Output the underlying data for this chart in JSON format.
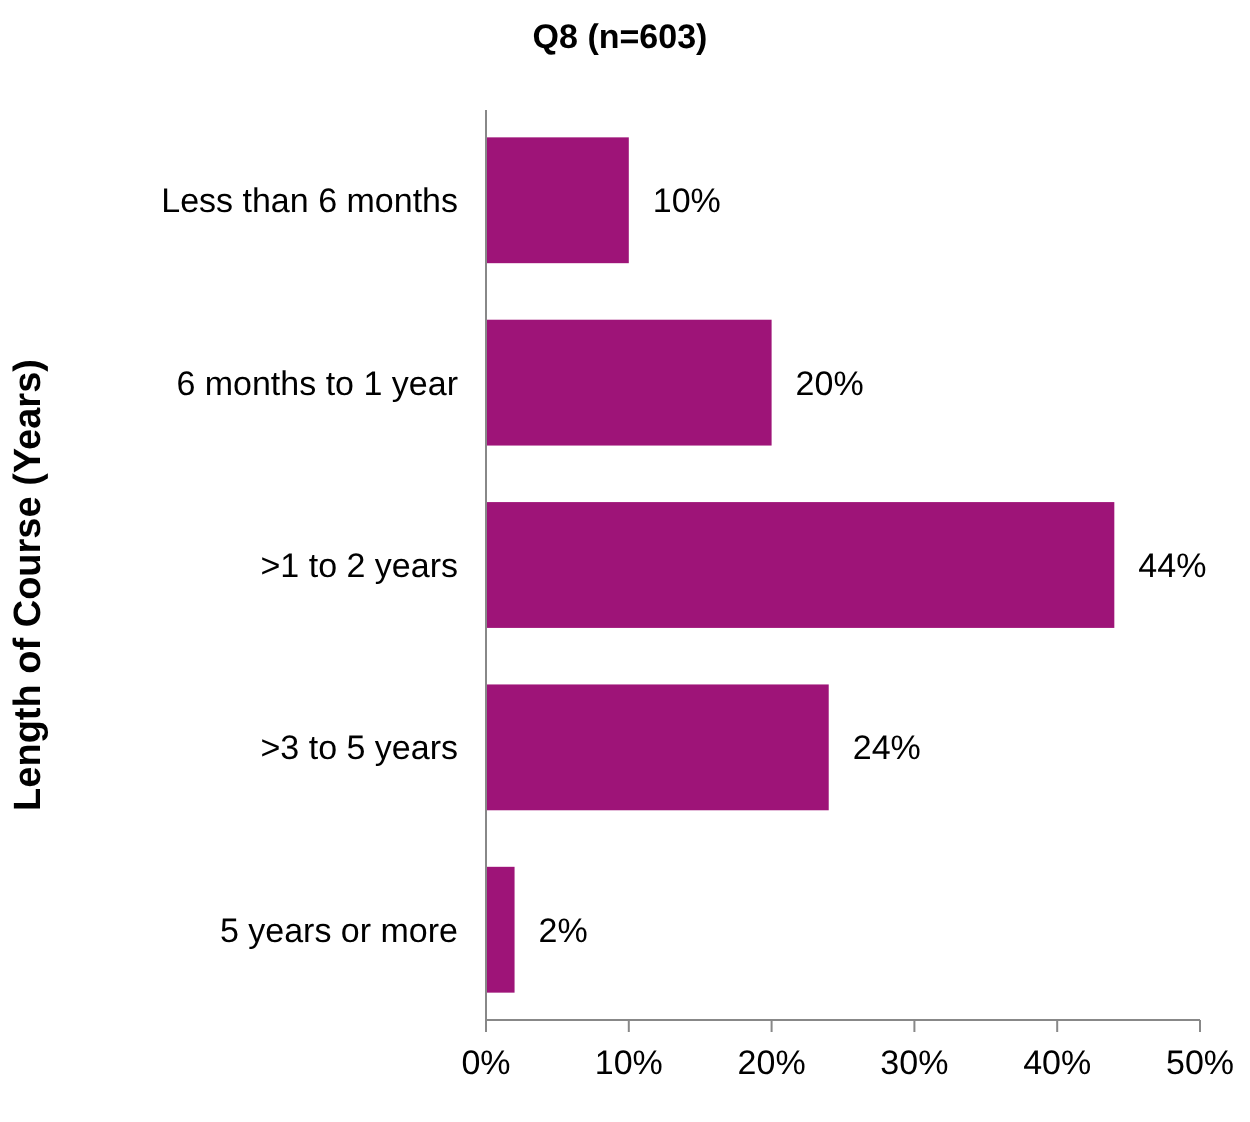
{
  "chart_data": {
    "type": "bar",
    "orientation": "horizontal",
    "title": "Q8 (n=603)",
    "ylabel": "Length of Course (Years)",
    "categories": [
      "Less than 6 months",
      "6 months to 1 year",
      ">1 to 2 years",
      ">3 to 5 years",
      "5 years or more"
    ],
    "values": [
      10,
      20,
      44,
      24,
      2
    ],
    "value_labels": [
      "10%",
      "20%",
      "44%",
      "24%",
      "2%"
    ],
    "color": "#9e1478",
    "xlim": [
      0,
      50
    ],
    "xticks": [
      {
        "value": 0,
        "label": "0%"
      },
      {
        "value": 10,
        "label": "10%"
      },
      {
        "value": 20,
        "label": "20%"
      },
      {
        "value": 30,
        "label": "30%"
      },
      {
        "value": 40,
        "label": "40%"
      },
      {
        "value": 50,
        "label": "50%"
      }
    ],
    "grid": false
  }
}
